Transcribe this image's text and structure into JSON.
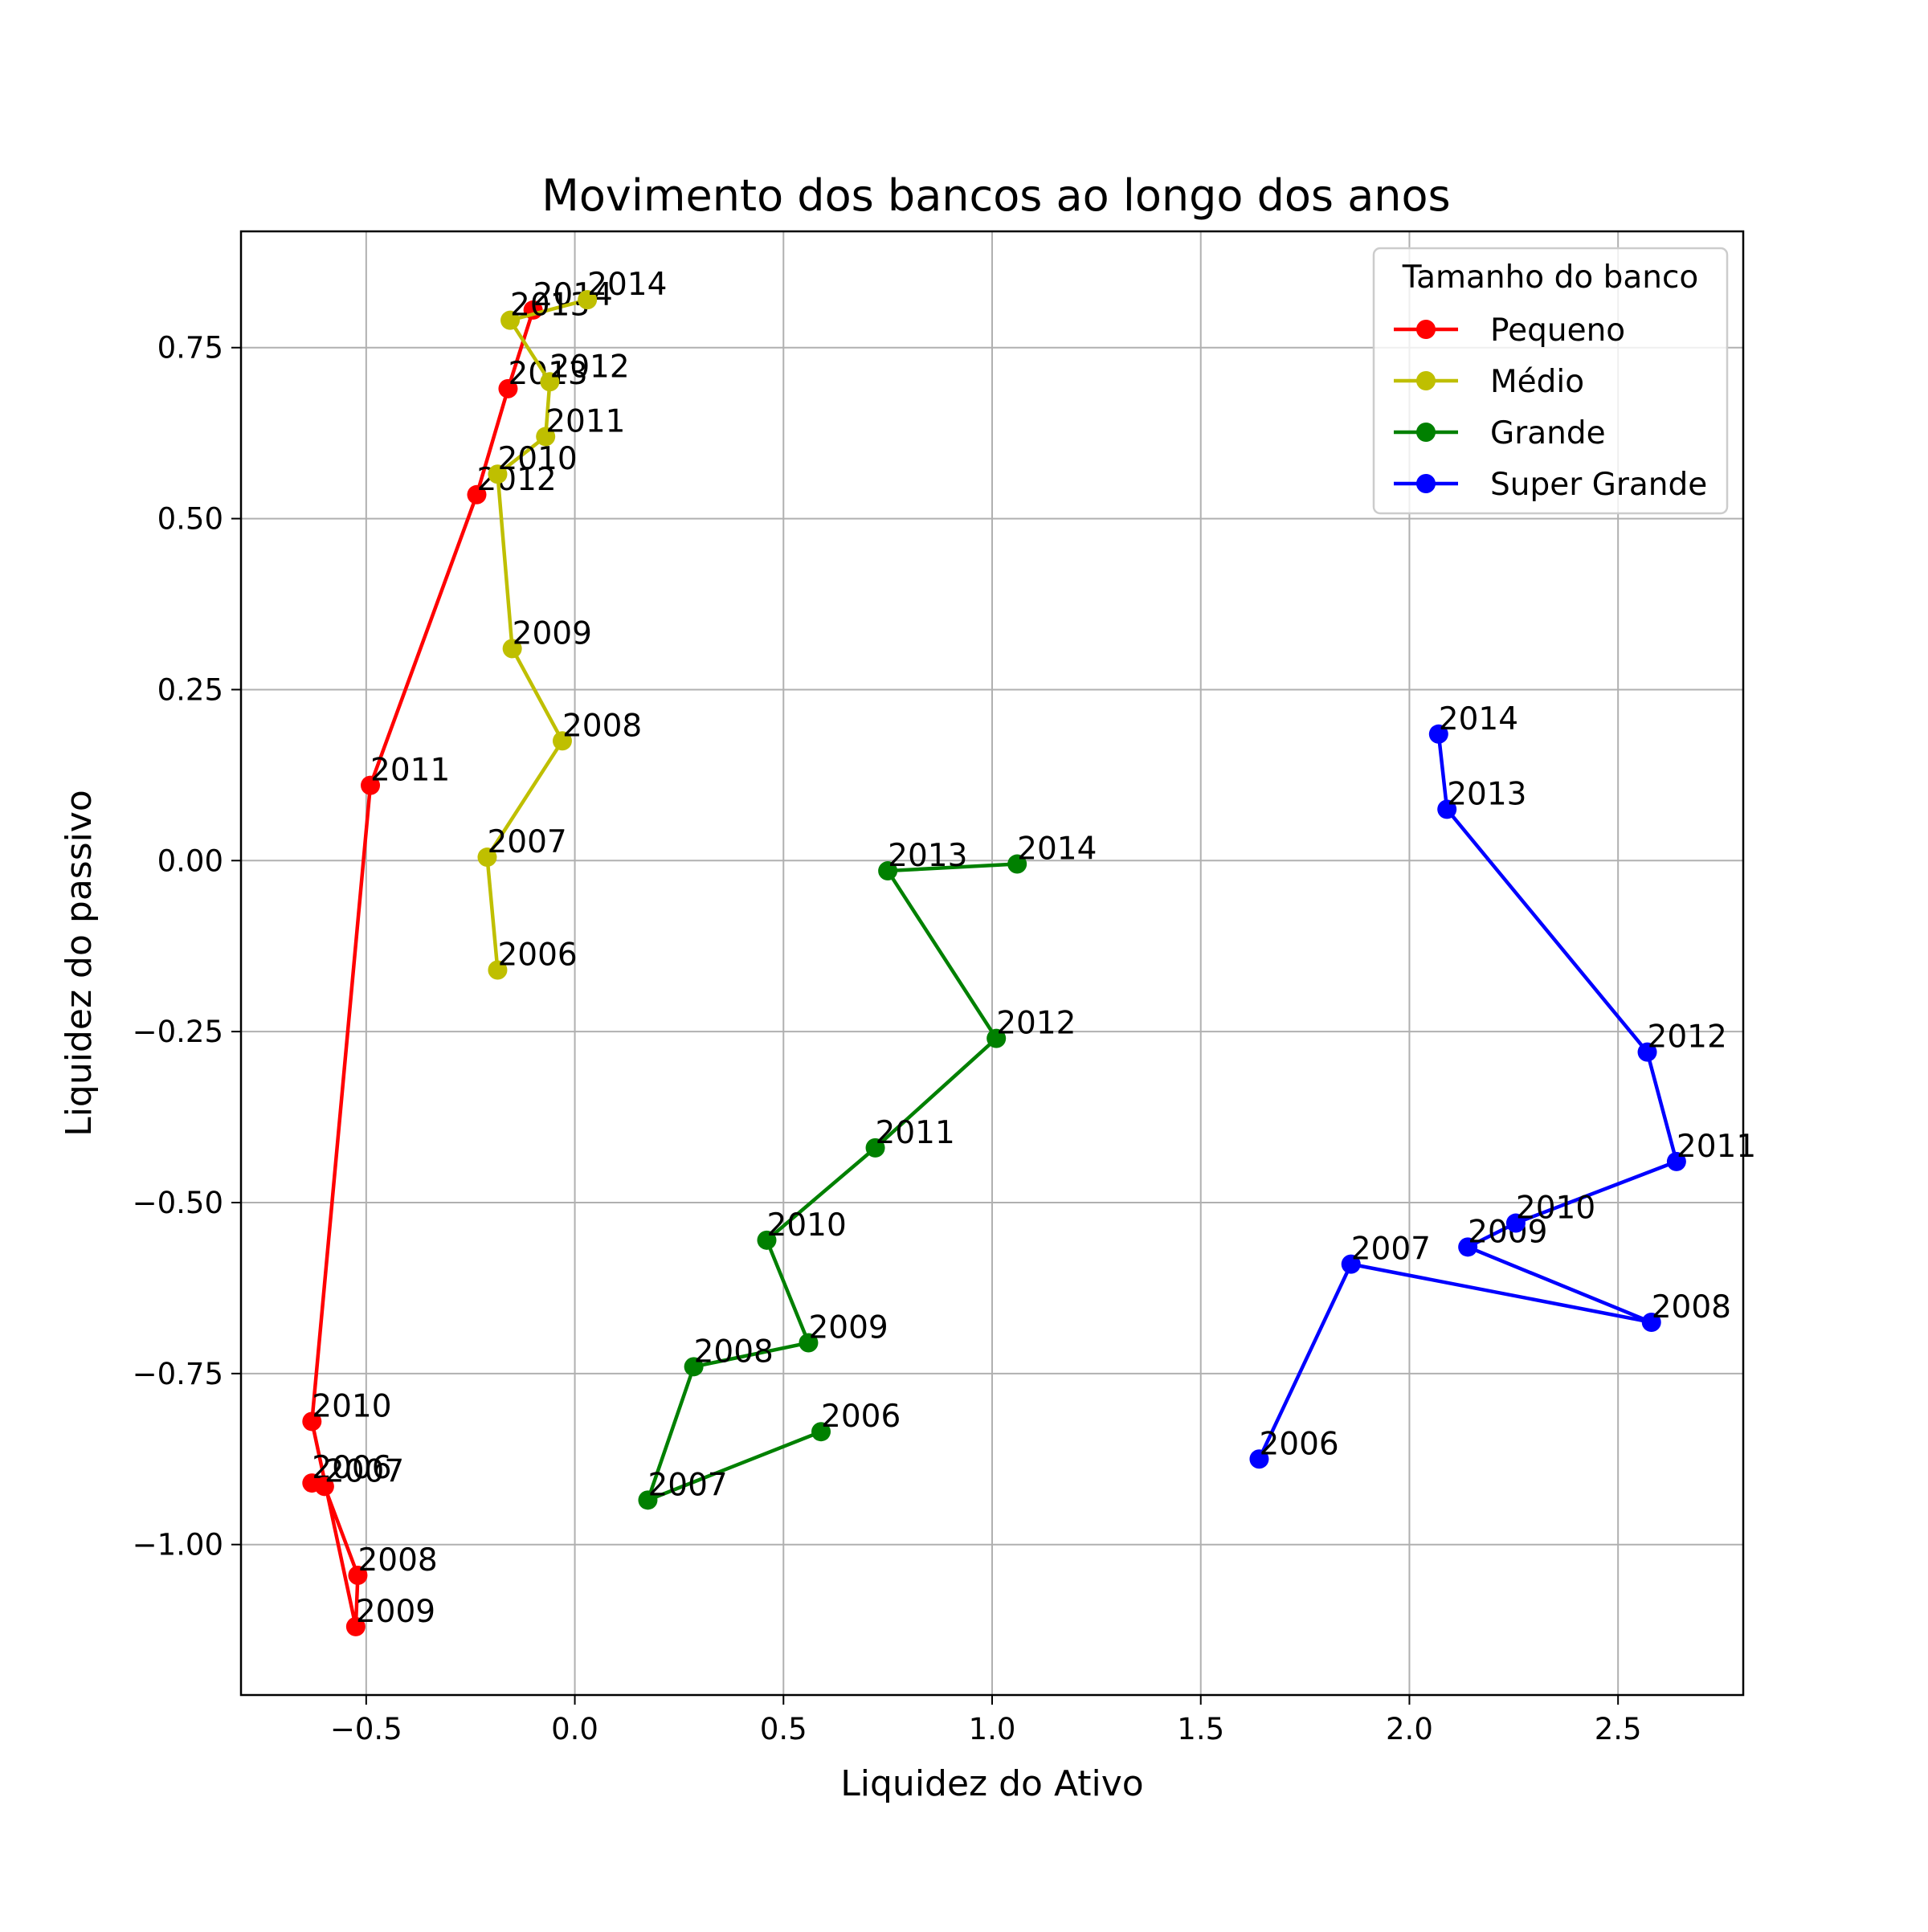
{
  "chart_data": {
    "type": "line",
    "title": "Movimento dos bancos ao longo dos anos",
    "xlabel": "Liquidez do Ativo",
    "ylabel": "Liquidez do passivo",
    "xlim": [
      -0.8,
      2.8
    ],
    "ylim": [
      -1.22,
      0.92
    ],
    "xticks": [
      -0.5,
      0.0,
      0.5,
      1.0,
      1.5,
      2.0,
      2.5
    ],
    "xtick_labels": [
      "−0.5",
      "0.0",
      "0.5",
      "1.0",
      "1.5",
      "2.0",
      "2.5"
    ],
    "yticks": [
      -1.0,
      -0.75,
      -0.5,
      -0.25,
      0.0,
      0.25,
      0.5,
      0.75
    ],
    "ytick_labels": [
      "−1.00",
      "−0.75",
      "−0.50",
      "−0.25",
      "0.00",
      "0.25",
      "0.50",
      "0.75"
    ],
    "grid": true,
    "legend": {
      "title": "Tamanho do banco",
      "position": "top-right"
    },
    "series": [
      {
        "name": "Pequeno",
        "color": "#ff0000",
        "points": [
          {
            "label": "2006",
            "x": -0.63,
            "y": -0.91
          },
          {
            "label": "2007",
            "x": -0.6,
            "y": -0.915
          },
          {
            "label": "2008",
            "x": -0.52,
            "y": -1.045
          },
          {
            "label": "2009",
            "x": -0.525,
            "y": -1.12
          },
          {
            "label": "2010",
            "x": -0.63,
            "y": -0.82
          },
          {
            "label": "2011",
            "x": -0.49,
            "y": 0.11
          },
          {
            "label": "2012",
            "x": -0.235,
            "y": 0.535
          },
          {
            "label": "2013",
            "x": -0.16,
            "y": 0.69
          },
          {
            "label": "2014",
            "x": -0.1,
            "y": 0.805
          }
        ]
      },
      {
        "name": "Médio",
        "color": "#bfbf00",
        "points": [
          {
            "label": "2006",
            "x": -0.185,
            "y": -0.16
          },
          {
            "label": "2007",
            "x": -0.21,
            "y": 0.005
          },
          {
            "label": "2008",
            "x": -0.03,
            "y": 0.175
          },
          {
            "label": "2009",
            "x": -0.15,
            "y": 0.31
          },
          {
            "label": "2010",
            "x": -0.185,
            "y": 0.565
          },
          {
            "label": "2011",
            "x": -0.07,
            "y": 0.62
          },
          {
            "label": "2012",
            "x": -0.06,
            "y": 0.7
          },
          {
            "label": "2013",
            "x": -0.155,
            "y": 0.79
          },
          {
            "label": "2014",
            "x": 0.03,
            "y": 0.82
          }
        ]
      },
      {
        "name": "Grande",
        "color": "#008000",
        "points": [
          {
            "label": "2006",
            "x": 0.59,
            "y": -0.835
          },
          {
            "label": "2007",
            "x": 0.175,
            "y": -0.935
          },
          {
            "label": "2008",
            "x": 0.285,
            "y": -0.74
          },
          {
            "label": "2009",
            "x": 0.56,
            "y": -0.705
          },
          {
            "label": "2010",
            "x": 0.46,
            "y": -0.555
          },
          {
            "label": "2011",
            "x": 0.72,
            "y": -0.42
          },
          {
            "label": "2012",
            "x": 1.01,
            "y": -0.26
          },
          {
            "label": "2013",
            "x": 0.75,
            "y": -0.015
          },
          {
            "label": "2014",
            "x": 1.06,
            "y": -0.005
          }
        ]
      },
      {
        "name": "Super Grande",
        "color": "#0000ff",
        "points": [
          {
            "label": "2006",
            "x": 1.64,
            "y": -0.875
          },
          {
            "label": "2007",
            "x": 1.86,
            "y": -0.59
          },
          {
            "label": "2008",
            "x": 2.58,
            "y": -0.675
          },
          {
            "label": "2009",
            "x": 2.14,
            "y": -0.565
          },
          {
            "label": "2010",
            "x": 2.255,
            "y": -0.53
          },
          {
            "label": "2011",
            "x": 2.64,
            "y": -0.44
          },
          {
            "label": "2012",
            "x": 2.57,
            "y": -0.28
          },
          {
            "label": "2013",
            "x": 2.09,
            "y": 0.075
          },
          {
            "label": "2014",
            "x": 2.07,
            "y": 0.185
          }
        ]
      }
    ]
  }
}
